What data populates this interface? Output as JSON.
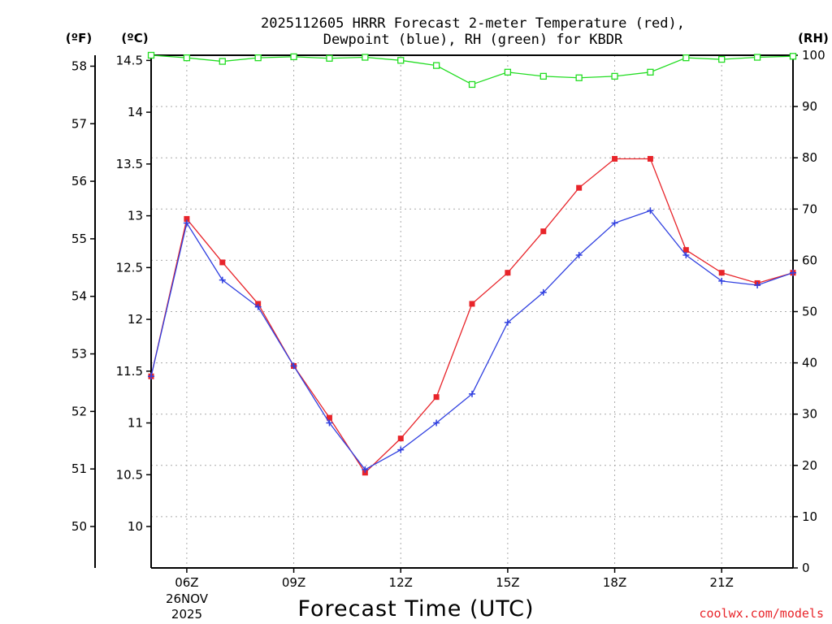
{
  "chart_data": {
    "type": "line",
    "title_line1": "2025112605 HRRR Forecast 2-meter Temperature (red),",
    "title_line2": "Dewpoint (blue), RH (green) for KBDR",
    "unit_f": "(ºF)",
    "unit_c": "(ºC)",
    "unit_rh": "(RH)",
    "xlabel": "Forecast Time (UTC)",
    "credit": "coolwx.com/models",
    "x_hours": [
      5,
      6,
      7,
      8,
      9,
      10,
      11,
      12,
      13,
      14,
      15,
      16,
      17,
      18,
      19,
      20,
      21,
      22,
      23
    ],
    "xlim": [
      5,
      23
    ],
    "x_ticks": [
      {
        "hour": 6,
        "label": "06Z"
      },
      {
        "hour": 9,
        "label": "09Z"
      },
      {
        "hour": 12,
        "label": "12Z"
      },
      {
        "hour": 15,
        "label": "15Z"
      },
      {
        "hour": 18,
        "label": "18Z"
      },
      {
        "hour": 21,
        "label": "21Z"
      }
    ],
    "date_label_line1": "26NOV",
    "date_label_line2": "2025",
    "ylim_c": [
      9.6,
      14.55
    ],
    "yticks_c": [
      {
        "value": 10,
        "label": "10"
      },
      {
        "value": 10.5,
        "label": "10.5"
      },
      {
        "value": 11,
        "label": "11"
      },
      {
        "value": 11.5,
        "label": "11.5"
      },
      {
        "value": 12,
        "label": "12"
      },
      {
        "value": 12.5,
        "label": "12.5"
      },
      {
        "value": 13,
        "label": "13"
      },
      {
        "value": 13.5,
        "label": "13.5"
      },
      {
        "value": 14,
        "label": "14"
      },
      {
        "value": 14.5,
        "label": "14.5"
      }
    ],
    "yticks_f": [
      {
        "value": 50,
        "label": "50"
      },
      {
        "value": 51,
        "label": "51"
      },
      {
        "value": 52,
        "label": "52"
      },
      {
        "value": 53,
        "label": "53"
      },
      {
        "value": 54,
        "label": "54"
      },
      {
        "value": 55,
        "label": "55"
      },
      {
        "value": 56,
        "label": "56"
      },
      {
        "value": 57,
        "label": "57"
      },
      {
        "value": 58,
        "label": "58"
      }
    ],
    "ylim_rh": [
      0,
      100
    ],
    "yticks_rh": [
      {
        "value": 0,
        "label": "0"
      },
      {
        "value": 10,
        "label": "10"
      },
      {
        "value": 20,
        "label": "20"
      },
      {
        "value": 30,
        "label": "30"
      },
      {
        "value": 40,
        "label": "40"
      },
      {
        "value": 50,
        "label": "50"
      },
      {
        "value": 60,
        "label": "60"
      },
      {
        "value": 70,
        "label": "70"
      },
      {
        "value": 80,
        "label": "80"
      },
      {
        "value": 90,
        "label": "90"
      },
      {
        "value": 100,
        "label": "100"
      }
    ],
    "series": [
      {
        "name": "Temperature",
        "color": "#e8242a",
        "marker": "square-filled",
        "values": [
          11.45,
          12.97,
          12.55,
          12.15,
          11.55,
          11.05,
          10.52,
          10.85,
          11.25,
          12.15,
          12.45,
          12.85,
          13.27,
          13.55,
          13.55,
          12.67,
          12.45,
          12.35,
          12.45
        ]
      },
      {
        "name": "Dewpoint",
        "color": "#3040e0",
        "marker": "plus",
        "values": [
          11.45,
          12.93,
          12.38,
          12.12,
          11.55,
          11.0,
          10.55,
          10.74,
          11.0,
          11.28,
          11.97,
          12.26,
          12.62,
          12.93,
          13.05,
          12.62,
          12.37,
          12.33,
          12.45
        ]
      },
      {
        "name": "RH",
        "color": "#22dd22",
        "marker": "square-open",
        "values": [
          100,
          99.5,
          98.8,
          99.5,
          99.7,
          99.4,
          99.6,
          99,
          98,
          94.3,
          96.7,
          95.9,
          95.6,
          95.9,
          96.7,
          99.5,
          99.2,
          99.6,
          99.8
        ]
      }
    ]
  }
}
